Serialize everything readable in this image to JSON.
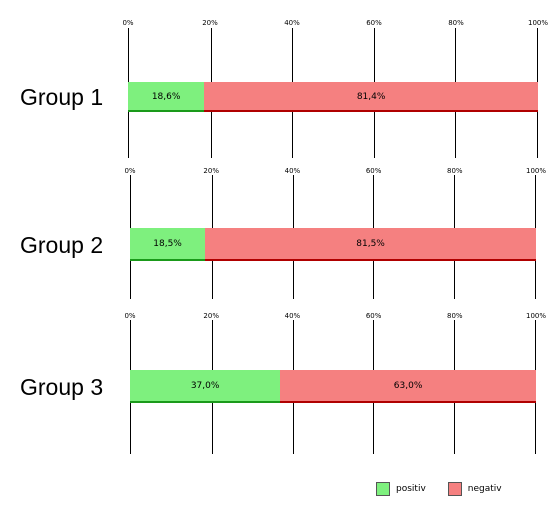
{
  "chart_data": {
    "type": "bar",
    "orientation": "horizontal",
    "stacked": true,
    "categories": [
      "Group 1",
      "Group 2",
      "Group 3"
    ],
    "series": [
      {
        "name": "positiv",
        "values": [
          18.6,
          18.5,
          37.0
        ],
        "labels": [
          "18,6%",
          "18,5%",
          "37,0%"
        ],
        "color": "#7ef07e",
        "edge": "#1a9a1a"
      },
      {
        "name": "negativ",
        "values": [
          81.4,
          81.5,
          63.0
        ],
        "labels": [
          "81,4%",
          "81,5%",
          "63,0%"
        ],
        "color": "#f58080",
        "edge": "#b00000"
      }
    ],
    "x_ticks": [
      "0%",
      "20%",
      "40%",
      "60%",
      "80%",
      "100%"
    ],
    "xlim": [
      0,
      100
    ],
    "grid": true,
    "legend_position": "bottom-right"
  }
}
